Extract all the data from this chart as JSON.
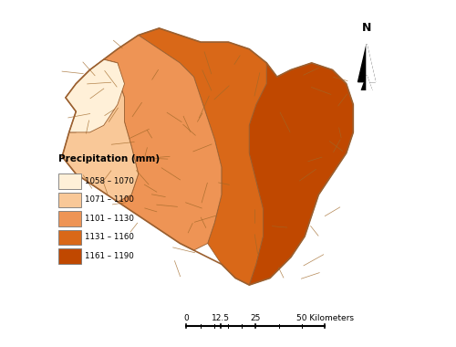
{
  "legend_title": "Precipitation (mm)",
  "legend_labels": [
    "1058 – 1070",
    "1071 – 1100",
    "1101 – 1130",
    "1131 – 1160",
    "1161 – 1190"
  ],
  "legend_colors": [
    "#FFF0D8",
    "#F9C898",
    "#EE9455",
    "#D96818",
    "#C04800"
  ],
  "background_color": "#ffffff",
  "border_color": "#9B6030",
  "sub_border_color": "#A06828"
}
